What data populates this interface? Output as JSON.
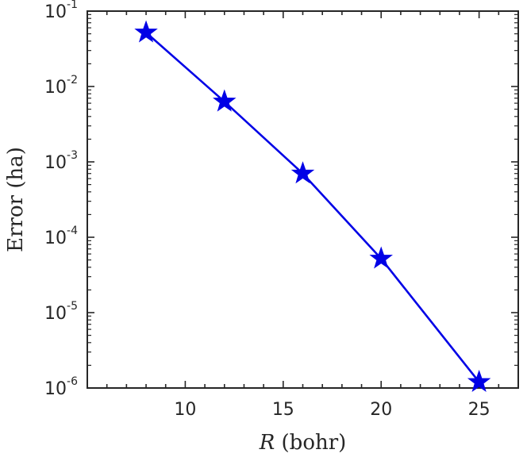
{
  "chart_data": {
    "type": "line",
    "xlabel": {
      "variable": "R",
      "unit": " (bohr)"
    },
    "ylabel": "Error (ha)",
    "xscale": "linear",
    "yscale": "log",
    "xlim": [
      5,
      27
    ],
    "ylim": [
      1e-06,
      0.1
    ],
    "x_ticks": [
      10,
      15,
      20,
      25
    ],
    "x_tick_labels": [
      "10",
      "15",
      "20",
      "25"
    ],
    "y_ticks": [
      1e-06,
      1e-05,
      0.0001,
      0.001,
      0.01,
      0.1
    ],
    "y_tick_labels": [
      {
        "base": "10",
        "exp": "-6"
      },
      {
        "base": "10",
        "exp": "-5"
      },
      {
        "base": "10",
        "exp": "-4"
      },
      {
        "base": "10",
        "exp": "-3"
      },
      {
        "base": "10",
        "exp": "-2"
      },
      {
        "base": "10",
        "exp": "-1"
      }
    ],
    "grid": false,
    "series": [
      {
        "x": [
          8,
          12,
          16,
          20,
          25
        ],
        "y": [
          0.052,
          0.0063,
          0.0007,
          5.2e-05,
          1.2e-06
        ],
        "color": "#0000e6",
        "marker": "star"
      }
    ]
  }
}
